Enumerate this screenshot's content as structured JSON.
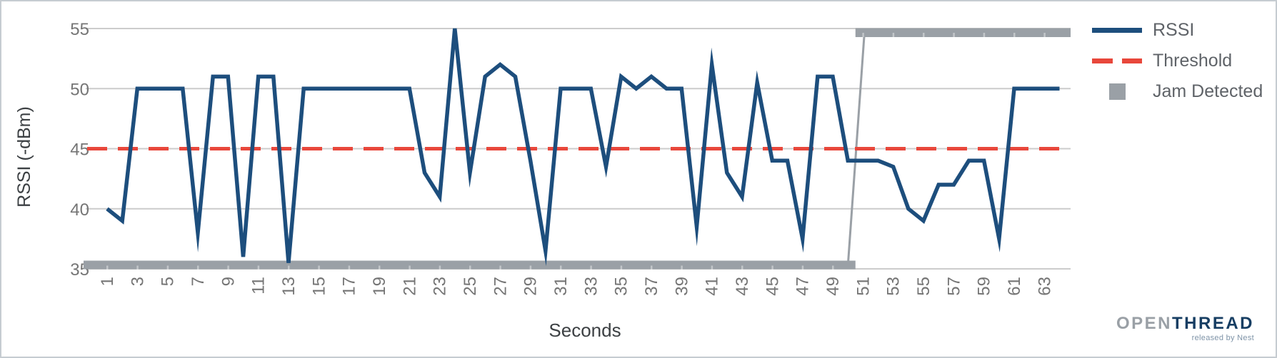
{
  "chart": {
    "y_axis": {
      "title": "RSSI (-dBm)",
      "tick_labels": [
        "55",
        "50",
        "45",
        "40",
        "35"
      ]
    },
    "x_axis": {
      "title": "Seconds",
      "tick_labels": [
        "1",
        "3",
        "5",
        "7",
        "9",
        "11",
        "13",
        "15",
        "17",
        "19",
        "21",
        "23",
        "25",
        "27",
        "29",
        "31",
        "33",
        "35",
        "37",
        "39",
        "41",
        "43",
        "45",
        "47",
        "49",
        "51",
        "53",
        "55",
        "57",
        "59",
        "61",
        "63"
      ]
    },
    "legend": [
      {
        "label": "RSSI",
        "swatch": "line",
        "color": "#1d4e7d"
      },
      {
        "label": "Threshold",
        "swatch": "dashed-line",
        "color": "#e8473b"
      },
      {
        "label": "Jam Detected",
        "swatch": "square",
        "color": "#9aa0a6"
      }
    ],
    "colors": {
      "rssi_line": "#1d4e7d",
      "threshold_line": "#e8473b",
      "jam_bar": "#9aa0a6",
      "gridline": "#cccccc",
      "tick_text": "#757575",
      "axis_title_text": "#3c4043"
    }
  },
  "chart_data": {
    "type": "line",
    "title": "",
    "xlabel": "Seconds",
    "ylabel": "RSSI (-dBm)",
    "ylim": [
      35,
      55
    ],
    "xlim": [
      1,
      64
    ],
    "grid": "horizontal",
    "legend_position": "right",
    "x": [
      1,
      2,
      3,
      4,
      5,
      6,
      7,
      8,
      9,
      10,
      11,
      12,
      13,
      14,
      15,
      16,
      17,
      18,
      19,
      20,
      21,
      22,
      23,
      24,
      25,
      26,
      27,
      28,
      29,
      30,
      31,
      32,
      33,
      34,
      35,
      36,
      37,
      38,
      39,
      40,
      41,
      42,
      43,
      44,
      45,
      46,
      47,
      48,
      49,
      50,
      51,
      52,
      53,
      54,
      55,
      56,
      57,
      58,
      59,
      60,
      61,
      62,
      63,
      64
    ],
    "series": [
      {
        "name": "RSSI",
        "type": "line",
        "values": [
          40,
          39,
          50,
          50,
          50,
          50,
          38,
          51,
          51,
          36,
          51,
          51,
          35.5,
          50,
          50,
          50,
          50,
          50,
          50,
          50,
          50,
          43,
          41,
          55,
          43,
          51,
          52,
          51,
          44,
          36.5,
          50,
          50,
          50,
          43.5,
          51,
          50,
          51,
          50,
          50,
          38.5,
          52,
          43,
          41,
          50.5,
          44,
          44,
          37.5,
          51,
          51,
          44,
          44,
          44,
          43.5,
          40,
          39,
          42,
          42,
          44,
          44,
          37.5,
          50,
          50,
          50,
          50
        ]
      },
      {
        "name": "Threshold",
        "type": "dashed-line",
        "value": 45
      },
      {
        "name": "Jam Detected",
        "type": "step-band",
        "jam_start_second": 51,
        "values": [
          false,
          false,
          false,
          false,
          false,
          false,
          false,
          false,
          false,
          false,
          false,
          false,
          false,
          false,
          false,
          false,
          false,
          false,
          false,
          false,
          false,
          false,
          false,
          false,
          false,
          false,
          false,
          false,
          false,
          false,
          false,
          false,
          false,
          false,
          false,
          false,
          false,
          false,
          false,
          false,
          false,
          false,
          false,
          false,
          false,
          false,
          false,
          false,
          false,
          false,
          true,
          true,
          true,
          true,
          true,
          true,
          true,
          true,
          true,
          true,
          true,
          true,
          true,
          true
        ]
      }
    ]
  },
  "logo": {
    "part1": "OPEN",
    "part2": "THREAD",
    "tagline": "released by Nest"
  }
}
